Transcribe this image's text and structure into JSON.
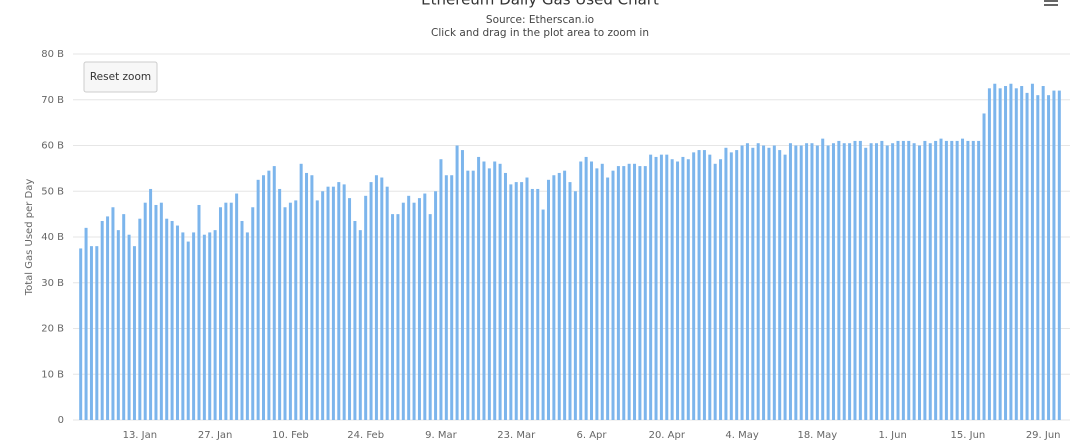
{
  "chart_data": {
    "type": "bar",
    "title": "Ethereum Daily Gas Used Chart",
    "subtitle": "Source: Etherscan.io",
    "hint": "Click and drag in the plot area to zoom in",
    "ylabel": "Total Gas Used per Day",
    "button": "Reset zoom",
    "color": "#7cb5ec",
    "grid": true,
    "ylim": [
      0,
      80
    ],
    "yticks": [
      0,
      {
        "value": 10,
        "label": "10 B"
      },
      {
        "value": 20,
        "label": "20 B"
      },
      {
        "value": 30,
        "label": "30 B"
      },
      {
        "value": 40,
        "label": "40 B"
      },
      {
        "value": 50,
        "label": "50 B"
      },
      {
        "value": 60,
        "label": "60 B"
      },
      {
        "value": 70,
        "label": "70 B"
      },
      {
        "value": 80,
        "label": "80 B"
      }
    ],
    "categories": [
      null,
      null,
      null,
      null,
      null,
      null,
      null,
      null,
      null,
      null,
      null,
      "13. Jan",
      null,
      null,
      null,
      null,
      null,
      null,
      null,
      null,
      null,
      null,
      null,
      null,
      null,
      "27. Jan",
      null,
      null,
      null,
      null,
      null,
      null,
      null,
      null,
      null,
      null,
      null,
      null,
      null,
      "10. Feb",
      null,
      null,
      null,
      null,
      null,
      null,
      null,
      null,
      null,
      null,
      null,
      null,
      null,
      "24. Feb",
      null,
      null,
      null,
      null,
      null,
      null,
      null,
      null,
      null,
      null,
      null,
      null,
      null,
      "9. Mar",
      null,
      null,
      null,
      null,
      null,
      null,
      null,
      null,
      null,
      null,
      null,
      null,
      null,
      "23. Mar",
      null,
      null,
      null,
      null,
      null,
      null,
      null,
      null,
      null,
      null,
      null,
      null,
      null,
      "6. Apr",
      null,
      null,
      null,
      null,
      null,
      null,
      null,
      null,
      null,
      null,
      null,
      null,
      null,
      "20. Apr",
      null,
      null,
      null,
      null,
      null,
      null,
      null,
      null,
      null,
      null,
      null,
      null,
      null,
      "4. May",
      null,
      null,
      null,
      null,
      null,
      null,
      null,
      null,
      null,
      null,
      null,
      null,
      null,
      "18. May",
      null,
      null,
      null,
      null,
      null,
      null,
      null,
      null,
      null,
      null,
      null,
      null,
      null,
      "1. Jun",
      null,
      null,
      null,
      null,
      null,
      null,
      null,
      null,
      null,
      null,
      null,
      null,
      null,
      "15. Jun",
      null,
      null,
      null,
      null,
      null,
      null,
      null,
      null,
      null,
      null,
      null,
      null,
      null,
      "29. Jun",
      null,
      null,
      null
    ],
    "values": [
      37.5,
      42,
      38,
      38,
      43.5,
      44.5,
      46.5,
      41.5,
      45,
      40.5,
      38,
      44,
      47.5,
      50.5,
      47,
      47.5,
      44,
      43.5,
      42.5,
      41,
      39,
      41,
      47,
      40.5,
      41,
      41.5,
      46.5,
      47.5,
      47.5,
      49.5,
      43.5,
      41,
      46.5,
      52.5,
      53.5,
      54.5,
      55.5,
      50.5,
      46.5,
      47.5,
      48,
      56,
      54,
      53.5,
      48,
      50,
      51,
      51,
      52,
      51.5,
      48.5,
      43.5,
      41.5,
      49,
      52,
      53.5,
      53,
      51,
      45,
      45,
      47.5,
      49,
      47.5,
      48.5,
      49.5,
      45,
      50,
      57,
      53.5,
      53.5,
      60,
      59,
      54.5,
      54.5,
      57.5,
      56.5,
      55,
      56.5,
      56,
      54,
      51.5,
      52,
      52,
      53,
      50.5,
      50.5,
      46,
      52.5,
      53.5,
      54,
      54.5,
      52,
      50,
      56.5,
      57.5,
      56.5,
      55,
      56,
      53,
      54.5,
      55.5,
      55.5,
      56,
      56,
      55.5,
      55.5,
      58,
      57.5,
      58,
      58,
      57,
      56.5,
      57.5,
      57,
      58.5,
      59,
      59,
      58,
      56,
      57,
      59.5,
      58.5,
      59,
      60,
      60.5,
      59.5,
      60.5,
      60,
      59.5,
      60,
      59,
      58,
      60.5,
      60,
      60,
      60.5,
      60.5,
      60,
      61.5,
      60,
      60.5,
      61,
      60.5,
      60.5,
      61,
      61,
      59.5,
      60.5,
      60.5,
      61,
      60,
      60.5,
      61,
      61,
      61,
      60.5,
      60,
      61,
      60.5,
      61,
      61.5,
      61,
      61,
      61,
      61.5,
      61,
      61,
      61,
      67,
      72.5,
      73.5,
      72.5,
      73,
      73.5,
      72.5,
      73,
      71.5,
      73.5,
      71,
      73,
      71,
      72,
      72
    ]
  }
}
